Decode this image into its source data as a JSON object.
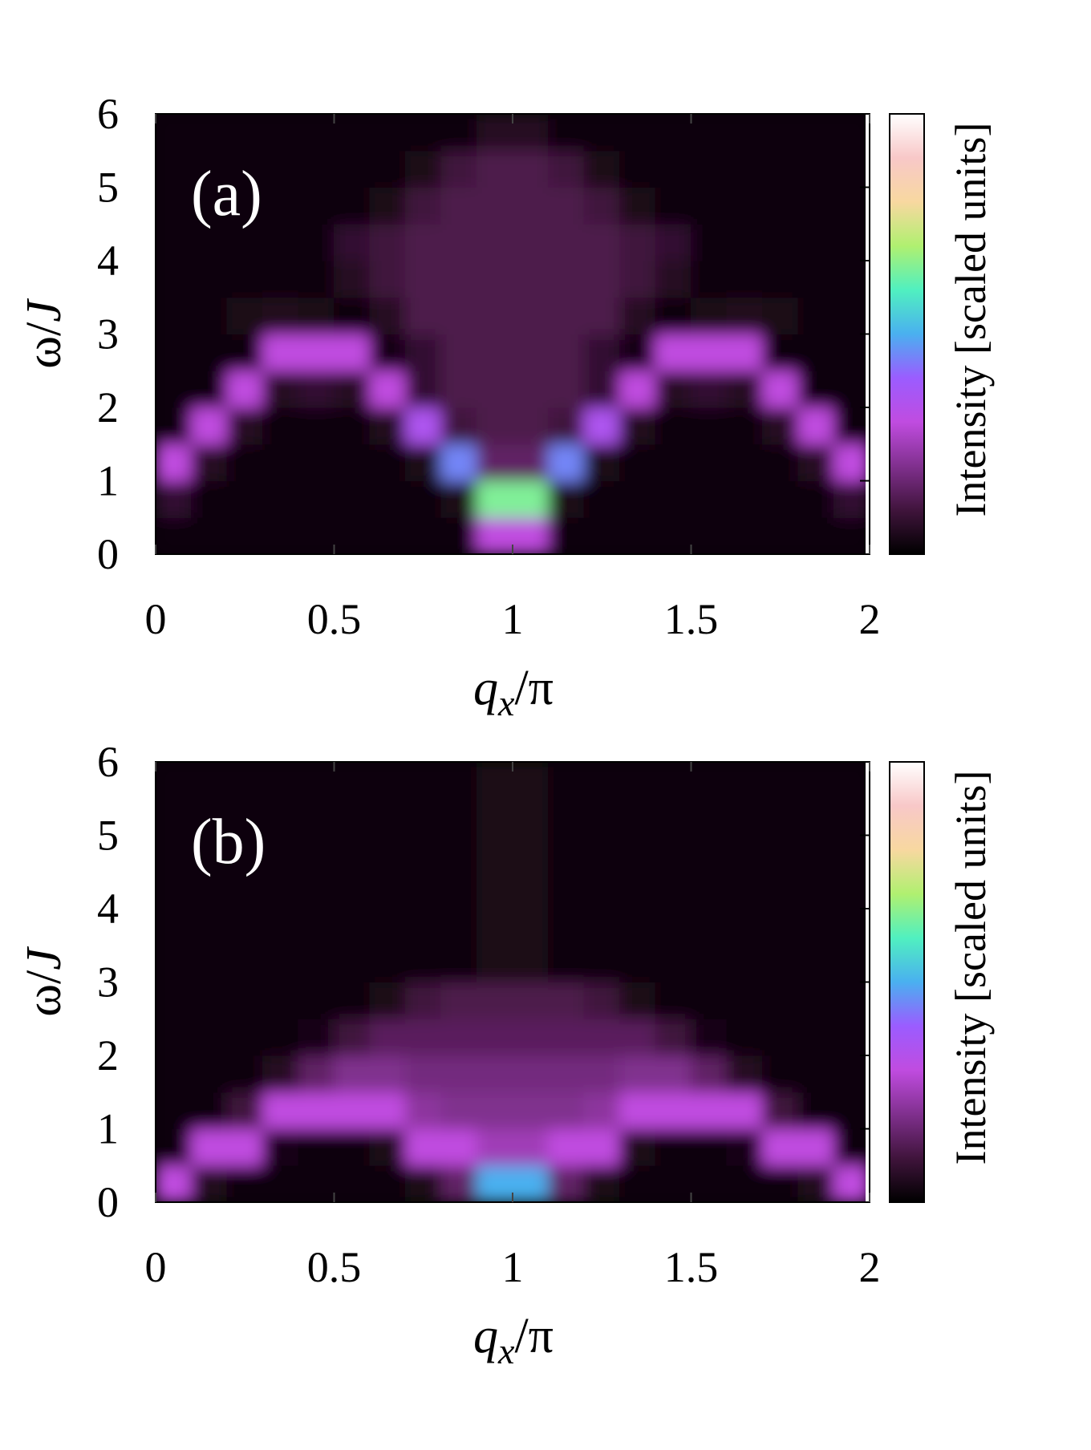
{
  "chart_data": [
    {
      "type": "heatmap",
      "annotation": "(a)",
      "xlabel": [
        "q",
        "x",
        "/π"
      ],
      "ylabel": [
        "ω/",
        "J"
      ],
      "colorbar_label": "Intensity [scaled units]",
      "xlim": [
        0,
        2
      ],
      "ylim": [
        0,
        6
      ],
      "xticks": [
        0,
        0.5,
        1,
        1.5,
        2
      ],
      "yticks": [
        0,
        1,
        2,
        3,
        4,
        5,
        6
      ],
      "zlim": [
        0,
        1
      ],
      "colormap_stops": [
        0,
        0.1,
        0.3,
        0.4,
        0.5,
        0.6,
        0.7,
        0.8,
        0.9,
        1
      ],
      "colormap_colors": [
        "#000000",
        "#40143c",
        "#c04ce0",
        "#9b5cff",
        "#4ab0f0",
        "#50f0c0",
        "#b0f070",
        "#f8d8a0",
        "#f8c8c8",
        "#ffffff"
      ],
      "z": [
        [
          0.02,
          0.02,
          0.02,
          0.02,
          0.02,
          0.02,
          0.02,
          0.02,
          0.02,
          0.3,
          0.3,
          0.02,
          0.02,
          0.02,
          0.02,
          0.02,
          0.02,
          0.02,
          0.02,
          0.02
        ],
        [
          0.08,
          0.02,
          0.02,
          0.02,
          0.02,
          0.02,
          0.02,
          0.02,
          0.04,
          0.65,
          0.65,
          0.04,
          0.02,
          0.02,
          0.02,
          0.02,
          0.02,
          0.02,
          0.02,
          0.08
        ],
        [
          0.3,
          0.06,
          0.02,
          0.02,
          0.02,
          0.02,
          0.02,
          0.04,
          0.45,
          0.15,
          0.15,
          0.45,
          0.04,
          0.02,
          0.02,
          0.02,
          0.02,
          0.02,
          0.06,
          0.3
        ],
        [
          0.02,
          0.3,
          0.06,
          0.02,
          0.02,
          0.02,
          0.05,
          0.35,
          0.1,
          0.12,
          0.12,
          0.1,
          0.35,
          0.05,
          0.02,
          0.02,
          0.02,
          0.06,
          0.3,
          0.02
        ],
        [
          0.02,
          0.02,
          0.3,
          0.06,
          0.08,
          0.06,
          0.3,
          0.08,
          0.12,
          0.12,
          0.12,
          0.12,
          0.08,
          0.3,
          0.06,
          0.08,
          0.06,
          0.3,
          0.02,
          0.02
        ],
        [
          0.02,
          0.02,
          0.02,
          0.3,
          0.3,
          0.3,
          0.03,
          0.08,
          0.12,
          0.12,
          0.12,
          0.12,
          0.08,
          0.03,
          0.3,
          0.3,
          0.3,
          0.02,
          0.02,
          0.02
        ],
        [
          0.02,
          0.02,
          0.04,
          0.05,
          0.04,
          0.02,
          0.06,
          0.12,
          0.12,
          0.12,
          0.12,
          0.12,
          0.12,
          0.06,
          0.02,
          0.04,
          0.05,
          0.04,
          0.02,
          0.02
        ],
        [
          0.02,
          0.02,
          0.02,
          0.02,
          0.02,
          0.06,
          0.1,
          0.12,
          0.12,
          0.12,
          0.12,
          0.12,
          0.12,
          0.1,
          0.06,
          0.02,
          0.02,
          0.02,
          0.02,
          0.02
        ],
        [
          0.02,
          0.02,
          0.02,
          0.02,
          0.02,
          0.08,
          0.1,
          0.12,
          0.12,
          0.12,
          0.12,
          0.12,
          0.12,
          0.1,
          0.08,
          0.02,
          0.02,
          0.02,
          0.02,
          0.02
        ],
        [
          0.02,
          0.02,
          0.02,
          0.02,
          0.02,
          0.02,
          0.04,
          0.1,
          0.12,
          0.12,
          0.12,
          0.12,
          0.1,
          0.04,
          0.02,
          0.02,
          0.02,
          0.02,
          0.02,
          0.02
        ],
        [
          0.02,
          0.02,
          0.02,
          0.02,
          0.02,
          0.02,
          0.02,
          0.04,
          0.1,
          0.12,
          0.12,
          0.1,
          0.04,
          0.02,
          0.02,
          0.02,
          0.02,
          0.02,
          0.02,
          0.02
        ],
        [
          0.02,
          0.02,
          0.02,
          0.02,
          0.02,
          0.02,
          0.02,
          0.02,
          0.02,
          0.06,
          0.06,
          0.02,
          0.02,
          0.02,
          0.02,
          0.02,
          0.02,
          0.02,
          0.02,
          0.02
        ]
      ]
    },
    {
      "type": "heatmap",
      "annotation": "(b)",
      "xlabel": [
        "q",
        "x",
        "/π"
      ],
      "ylabel": [
        "ω/",
        "J"
      ],
      "colorbar_label": "Intensity [scaled units]",
      "xlim": [
        0,
        2
      ],
      "ylim": [
        0,
        6
      ],
      "xticks": [
        0,
        0.5,
        1,
        1.5,
        2
      ],
      "yticks": [
        0,
        1,
        2,
        3,
        4,
        5,
        6
      ],
      "zlim": [
        0,
        1
      ],
      "colormap_stops": [
        0,
        0.1,
        0.3,
        0.4,
        0.5,
        0.6,
        0.7,
        0.8,
        0.9,
        1
      ],
      "colormap_colors": [
        "#000000",
        "#40143c",
        "#c04ce0",
        "#9b5cff",
        "#4ab0f0",
        "#50f0c0",
        "#b0f070",
        "#f8d8a0",
        "#f8c8c8",
        "#ffffff"
      ],
      "z": [
        [
          0.3,
          0.05,
          0.02,
          0.02,
          0.02,
          0.02,
          0.02,
          0.04,
          0.15,
          0.5,
          0.5,
          0.15,
          0.04,
          0.02,
          0.02,
          0.02,
          0.02,
          0.02,
          0.05,
          0.3
        ],
        [
          0.02,
          0.3,
          0.3,
          0.03,
          0.02,
          0.02,
          0.04,
          0.3,
          0.3,
          0.25,
          0.25,
          0.3,
          0.3,
          0.04,
          0.02,
          0.02,
          0.03,
          0.3,
          0.3,
          0.02
        ],
        [
          0.02,
          0.02,
          0.1,
          0.3,
          0.3,
          0.3,
          0.3,
          0.22,
          0.2,
          0.2,
          0.2,
          0.2,
          0.22,
          0.3,
          0.3,
          0.3,
          0.3,
          0.1,
          0.02,
          0.02
        ],
        [
          0.02,
          0.02,
          0.02,
          0.06,
          0.15,
          0.2,
          0.2,
          0.18,
          0.18,
          0.18,
          0.18,
          0.18,
          0.18,
          0.2,
          0.2,
          0.15,
          0.06,
          0.02,
          0.02,
          0.02
        ],
        [
          0.02,
          0.02,
          0.02,
          0.02,
          0.03,
          0.1,
          0.14,
          0.14,
          0.14,
          0.14,
          0.14,
          0.14,
          0.14,
          0.14,
          0.1,
          0.03,
          0.02,
          0.02,
          0.02,
          0.02
        ],
        [
          0.02,
          0.02,
          0.02,
          0.02,
          0.02,
          0.02,
          0.04,
          0.1,
          0.12,
          0.12,
          0.12,
          0.12,
          0.1,
          0.04,
          0.02,
          0.02,
          0.02,
          0.02,
          0.02,
          0.02
        ],
        [
          0.02,
          0.02,
          0.02,
          0.02,
          0.02,
          0.02,
          0.02,
          0.02,
          0.02,
          0.04,
          0.04,
          0.02,
          0.02,
          0.02,
          0.02,
          0.02,
          0.02,
          0.02,
          0.02,
          0.02
        ],
        [
          0.02,
          0.02,
          0.02,
          0.02,
          0.02,
          0.02,
          0.02,
          0.02,
          0.02,
          0.04,
          0.04,
          0.02,
          0.02,
          0.02,
          0.02,
          0.02,
          0.02,
          0.02,
          0.02,
          0.02
        ],
        [
          0.02,
          0.02,
          0.02,
          0.02,
          0.02,
          0.02,
          0.02,
          0.02,
          0.02,
          0.04,
          0.04,
          0.02,
          0.02,
          0.02,
          0.02,
          0.02,
          0.02,
          0.02,
          0.02,
          0.02
        ],
        [
          0.02,
          0.02,
          0.02,
          0.02,
          0.02,
          0.02,
          0.02,
          0.02,
          0.02,
          0.04,
          0.04,
          0.02,
          0.02,
          0.02,
          0.02,
          0.02,
          0.02,
          0.02,
          0.02,
          0.02
        ],
        [
          0.02,
          0.02,
          0.02,
          0.02,
          0.02,
          0.02,
          0.02,
          0.02,
          0.02,
          0.04,
          0.04,
          0.02,
          0.02,
          0.02,
          0.02,
          0.02,
          0.02,
          0.02,
          0.02,
          0.02
        ],
        [
          0.02,
          0.02,
          0.02,
          0.02,
          0.02,
          0.02,
          0.02,
          0.02,
          0.02,
          0.04,
          0.04,
          0.02,
          0.02,
          0.02,
          0.02,
          0.02,
          0.02,
          0.02,
          0.02,
          0.02
        ]
      ]
    }
  ]
}
